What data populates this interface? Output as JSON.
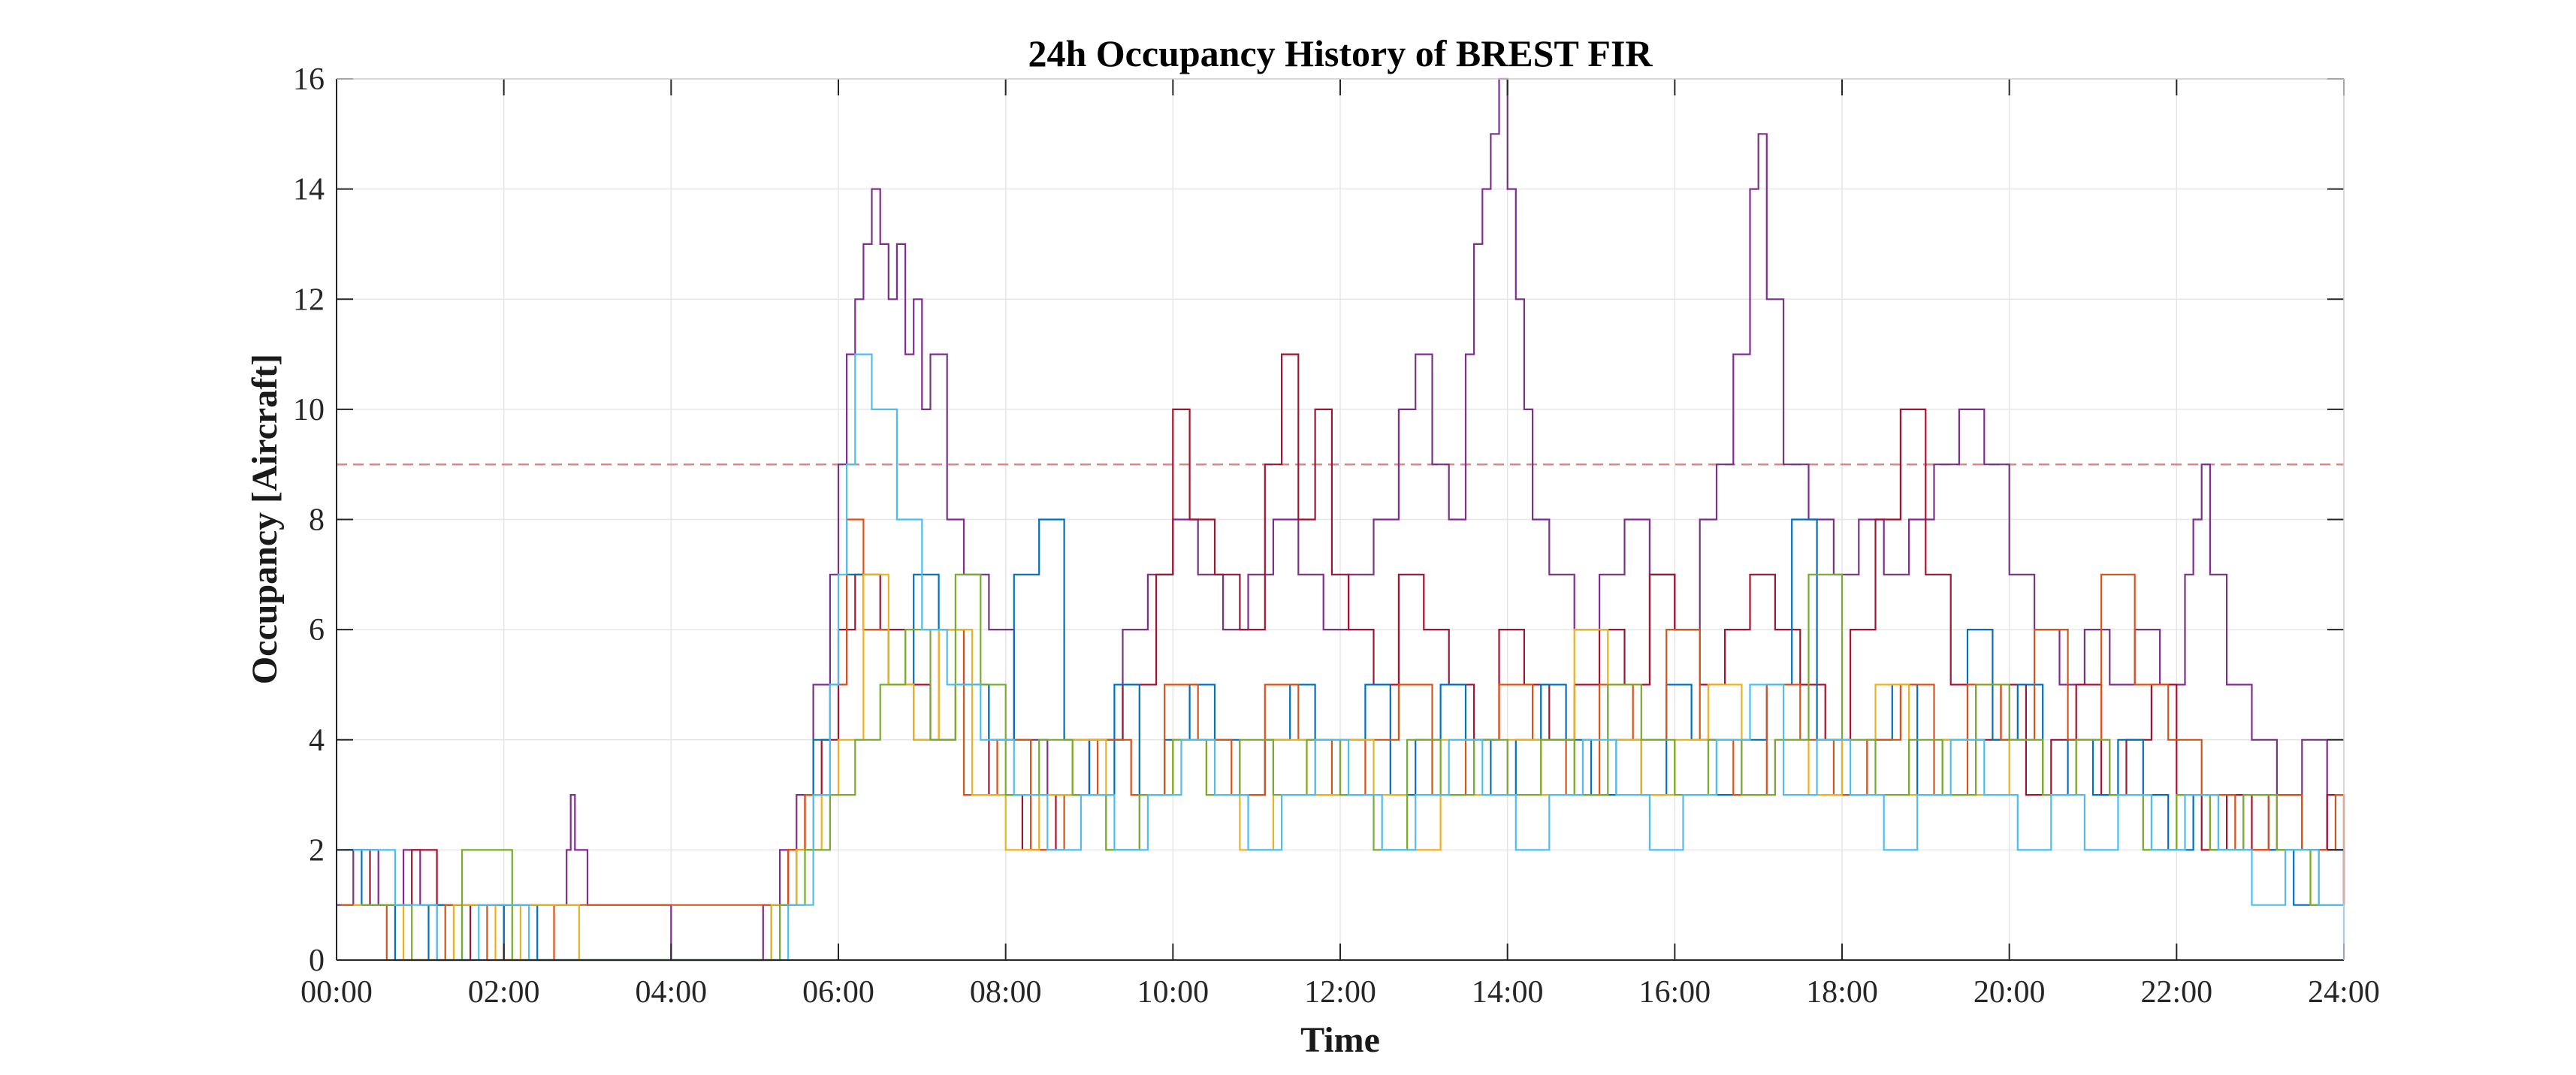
{
  "chart_data": {
    "type": "line",
    "step": true,
    "title": "24h Occupancy History of BREST FIR",
    "xlabel": "Time",
    "ylabel": "Occupancy [Aircraft]",
    "x_range_hours": [
      0,
      24
    ],
    "xticks": [
      "00:00",
      "02:00",
      "04:00",
      "06:00",
      "08:00",
      "10:00",
      "12:00",
      "14:00",
      "16:00",
      "18:00",
      "20:00",
      "22:00",
      "24:00"
    ],
    "ylim": [
      0,
      16
    ],
    "yticks": [
      0,
      2,
      4,
      6,
      8,
      10,
      12,
      14,
      16
    ],
    "grid": true,
    "legend": "none",
    "capacity_line": {
      "y": 9,
      "style": "dashed",
      "color": "#f08080"
    },
    "colors": [
      "#0072BD",
      "#D95319",
      "#EDB120",
      "#7E2F8E",
      "#77AC30",
      "#4DBEEE",
      "#A2142F"
    ],
    "series": [
      {
        "color": "#7E2F8E",
        "time_hours": [
          0,
          0.2,
          0.5,
          0.8,
          1.0,
          2.7,
          2.75,
          2.8,
          2.85,
          3.0,
          4.0,
          5.1,
          5.3,
          5.5,
          5.7,
          5.9,
          6.0,
          6.1,
          6.2,
          6.3,
          6.4,
          6.5,
          6.6,
          6.7,
          6.8,
          6.9,
          7.0,
          7.1,
          7.3,
          7.5,
          7.8,
          8.1,
          8.5,
          9.0,
          9.4,
          9.7,
          10.0,
          10.3,
          10.6,
          10.9,
          11.2,
          11.5,
          11.8,
          12.1,
          12.4,
          12.7,
          12.9,
          13.1,
          13.3,
          13.5,
          13.6,
          13.7,
          13.8,
          13.9,
          14.0,
          14.1,
          14.2,
          14.3,
          14.5,
          14.8,
          15.1,
          15.4,
          15.7,
          16.0,
          16.3,
          16.5,
          16.7,
          16.9,
          17.0,
          17.1,
          17.3,
          17.6,
          17.9,
          18.2,
          18.5,
          18.8,
          19.1,
          19.4,
          19.7,
          20.0,
          20.3,
          20.6,
          20.9,
          21.2,
          21.5,
          21.8,
          22.1,
          22.2,
          22.3,
          22.4,
          22.6,
          22.9,
          23.2,
          23.5,
          23.8,
          24.0
        ],
        "values": [
          1,
          2,
          1,
          2,
          1,
          1,
          2,
          3,
          2,
          1,
          0,
          1,
          2,
          3,
          5,
          7,
          9,
          11,
          12,
          13,
          14,
          13,
          12,
          13,
          11,
          12,
          10,
          11,
          8,
          7,
          6,
          4,
          3,
          4,
          6,
          7,
          8,
          7,
          6,
          7,
          8,
          7,
          6,
          7,
          8,
          10,
          11,
          9,
          8,
          11,
          13,
          14,
          15,
          16,
          14,
          12,
          10,
          8,
          7,
          6,
          7,
          8,
          7,
          6,
          8,
          9,
          11,
          14,
          15,
          12,
          9,
          8,
          7,
          8,
          7,
          8,
          9,
          10,
          9,
          7,
          6,
          5,
          6,
          5,
          6,
          5,
          7,
          8,
          9,
          7,
          5,
          4,
          3,
          4,
          2,
          2
        ]
      },
      {
        "color": "#A2142F",
        "time_hours": [
          0.1,
          0.4,
          0.9,
          1.2,
          1.6,
          2.0,
          5.2,
          5.4,
          5.6,
          5.8,
          6.0,
          6.2,
          6.5,
          6.8,
          7.1,
          7.4,
          7.8,
          8.2,
          8.6,
          9.0,
          9.4,
          9.8,
          10.0,
          10.2,
          10.5,
          10.8,
          11.1,
          11.3,
          11.5,
          11.7,
          11.9,
          12.1,
          12.4,
          12.7,
          13.0,
          13.3,
          13.6,
          13.9,
          14.2,
          14.5,
          14.8,
          15.1,
          15.4,
          15.7,
          16.0,
          16.3,
          16.6,
          16.9,
          17.2,
          17.5,
          17.8,
          18.1,
          18.4,
          18.7,
          19.0,
          19.3,
          19.6,
          19.9,
          20.2,
          20.5,
          20.8,
          21.1,
          21.4,
          21.7,
          22.0,
          22.3,
          22.6,
          22.9,
          23.2,
          23.5,
          23.8,
          24.0
        ],
        "values": [
          2,
          1,
          2,
          0,
          1,
          0,
          1,
          2,
          3,
          4,
          6,
          7,
          6,
          5,
          4,
          5,
          3,
          2,
          3,
          4,
          5,
          7,
          10,
          8,
          7,
          6,
          9,
          11,
          8,
          10,
          7,
          6,
          5,
          7,
          6,
          5,
          4,
          6,
          5,
          4,
          5,
          6,
          5,
          7,
          6,
          5,
          6,
          7,
          6,
          5,
          4,
          6,
          8,
          10,
          7,
          5,
          4,
          5,
          3,
          4,
          5,
          3,
          4,
          5,
          3,
          2,
          3,
          2,
          3,
          2,
          3,
          1
        ]
      },
      {
        "color": "#0072BD",
        "time_hours": [
          0.0,
          0.3,
          0.7,
          1.1,
          1.5,
          2.0,
          2.4,
          5.3,
          5.5,
          5.7,
          5.9,
          6.1,
          6.3,
          6.6,
          6.9,
          7.2,
          7.5,
          7.8,
          8.1,
          8.4,
          8.7,
          9.0,
          9.3,
          9.6,
          9.9,
          10.2,
          10.5,
          10.8,
          11.1,
          11.4,
          11.7,
          12.0,
          12.3,
          12.6,
          12.9,
          13.2,
          13.5,
          13.8,
          14.1,
          14.4,
          14.7,
          15.0,
          15.3,
          15.6,
          15.9,
          16.2,
          16.5,
          16.8,
          17.1,
          17.4,
          17.7,
          18.0,
          18.3,
          18.6,
          18.9,
          19.2,
          19.5,
          19.8,
          20.1,
          20.4,
          20.7,
          21.0,
          21.3,
          21.6,
          21.9,
          22.2,
          22.5,
          22.8,
          23.1,
          23.4,
          23.7,
          24.0
        ],
        "values": [
          2,
          1,
          0,
          1,
          0,
          1,
          0,
          1,
          2,
          4,
          5,
          7,
          6,
          5,
          7,
          6,
          5,
          4,
          7,
          8,
          4,
          3,
          5,
          3,
          4,
          5,
          4,
          3,
          4,
          5,
          3,
          4,
          5,
          3,
          4,
          5,
          4,
          3,
          4,
          5,
          4,
          3,
          4,
          3,
          5,
          4,
          3,
          4,
          5,
          8,
          4,
          3,
          4,
          5,
          3,
          4,
          6,
          4,
          5,
          3,
          4,
          3,
          4,
          3,
          2,
          3,
          2,
          3,
          2,
          1,
          2,
          1
        ]
      },
      {
        "color": "#D95319",
        "time_hours": [
          0.05,
          0.6,
          1.3,
          1.8,
          2.6,
          5.1,
          5.4,
          5.6,
          5.9,
          6.1,
          6.3,
          6.6,
          6.9,
          7.2,
          7.5,
          7.9,
          8.3,
          8.7,
          9.1,
          9.5,
          9.9,
          10.3,
          10.7,
          11.1,
          11.5,
          11.9,
          12.3,
          12.7,
          13.1,
          13.5,
          13.9,
          14.3,
          14.7,
          15.1,
          15.5,
          15.9,
          16.3,
          16.7,
          17.1,
          17.5,
          17.9,
          18.3,
          18.7,
          19.1,
          19.5,
          19.9,
          20.3,
          20.7,
          21.1,
          21.5,
          21.9,
          22.3,
          22.7,
          23.1,
          23.5,
          23.9,
          24.0
        ],
        "values": [
          1,
          0,
          1,
          0,
          1,
          1,
          2,
          3,
          5,
          8,
          6,
          5,
          4,
          6,
          3,
          4,
          2,
          3,
          4,
          3,
          5,
          4,
          3,
          5,
          4,
          3,
          4,
          5,
          3,
          4,
          5,
          4,
          3,
          5,
          4,
          6,
          4,
          3,
          5,
          4,
          3,
          4,
          5,
          3,
          5,
          4,
          6,
          4,
          7,
          5,
          4,
          3,
          2,
          3,
          2,
          3,
          1
        ]
      },
      {
        "color": "#EDB120",
        "time_hours": [
          0.2,
          0.8,
          1.4,
          1.9,
          2.2,
          2.9,
          5.2,
          5.5,
          5.8,
          6.0,
          6.3,
          6.6,
          6.9,
          7.2,
          7.6,
          8.0,
          8.4,
          8.8,
          9.2,
          9.6,
          10.0,
          10.4,
          10.8,
          11.2,
          11.6,
          12.0,
          12.4,
          12.8,
          13.2,
          13.6,
          14.0,
          14.4,
          14.8,
          15.2,
          15.6,
          16.0,
          16.4,
          16.8,
          17.2,
          17.6,
          18.0,
          18.4,
          18.8,
          19.2,
          19.6,
          20.0,
          20.4,
          20.8,
          21.2,
          21.6,
          22.0,
          22.4,
          22.8,
          23.2,
          23.6,
          24.0
        ],
        "values": [
          1,
          0,
          1,
          0,
          1,
          0,
          1,
          2,
          3,
          4,
          7,
          5,
          4,
          6,
          3,
          2,
          3,
          4,
          2,
          3,
          4,
          3,
          2,
          4,
          3,
          4,
          3,
          2,
          4,
          3,
          4,
          3,
          6,
          4,
          3,
          4,
          5,
          3,
          4,
          3,
          4,
          5,
          3,
          4,
          3,
          4,
          3,
          4,
          3,
          2,
          3,
          2,
          3,
          2,
          1,
          1
        ]
      },
      {
        "color": "#77AC30",
        "time_hours": [
          0.3,
          0.9,
          1.5,
          2.1,
          5.3,
          5.6,
          5.9,
          6.2,
          6.5,
          6.8,
          7.1,
          7.4,
          7.7,
          8.0,
          8.4,
          8.8,
          9.2,
          9.6,
          10.0,
          10.4,
          10.8,
          11.2,
          11.6,
          12.0,
          12.4,
          12.8,
          13.2,
          13.6,
          14.0,
          14.4,
          14.8,
          15.2,
          15.6,
          16.0,
          16.4,
          16.8,
          17.2,
          17.6,
          18.0,
          18.4,
          18.8,
          19.2,
          19.6,
          20.0,
          20.4,
          20.8,
          21.2,
          21.6,
          22.0,
          22.4,
          22.8,
          23.2,
          23.6,
          24.0
        ],
        "values": [
          1,
          0,
          2,
          0,
          1,
          2,
          3,
          4,
          5,
          6,
          4,
          7,
          5,
          3,
          4,
          3,
          2,
          3,
          4,
          3,
          4,
          3,
          4,
          3,
          2,
          4,
          3,
          4,
          3,
          4,
          3,
          5,
          4,
          3,
          4,
          3,
          4,
          7,
          4,
          3,
          4,
          3,
          5,
          4,
          3,
          4,
          3,
          2,
          3,
          2,
          3,
          2,
          1,
          1
        ]
      },
      {
        "color": "#4DBEEE",
        "time_hours": [
          0.15,
          0.7,
          1.2,
          1.7,
          2.3,
          5.4,
          5.7,
          5.9,
          6.0,
          6.1,
          6.2,
          6.4,
          6.7,
          7.0,
          7.3,
          7.7,
          8.1,
          8.5,
          8.9,
          9.3,
          9.7,
          10.1,
          10.5,
          10.9,
          11.3,
          11.7,
          12.1,
          12.5,
          12.9,
          13.3,
          13.7,
          14.1,
          14.5,
          14.9,
          15.3,
          15.7,
          16.1,
          16.5,
          16.9,
          17.3,
          17.7,
          18.1,
          18.5,
          18.9,
          19.3,
          19.7,
          20.1,
          20.5,
          20.9,
          21.3,
          21.7,
          22.1,
          22.5,
          22.9,
          23.3,
          23.7,
          24.0
        ],
        "values": [
          2,
          1,
          0,
          1,
          0,
          1,
          3,
          5,
          7,
          9,
          11,
          10,
          8,
          6,
          5,
          4,
          3,
          2,
          3,
          2,
          3,
          4,
          3,
          2,
          3,
          4,
          3,
          2,
          3,
          4,
          3,
          2,
          3,
          4,
          3,
          2,
          3,
          4,
          5,
          3,
          4,
          3,
          2,
          3,
          4,
          3,
          2,
          3,
          2,
          3,
          2,
          3,
          2,
          1,
          2,
          1,
          0
        ]
      }
    ]
  }
}
